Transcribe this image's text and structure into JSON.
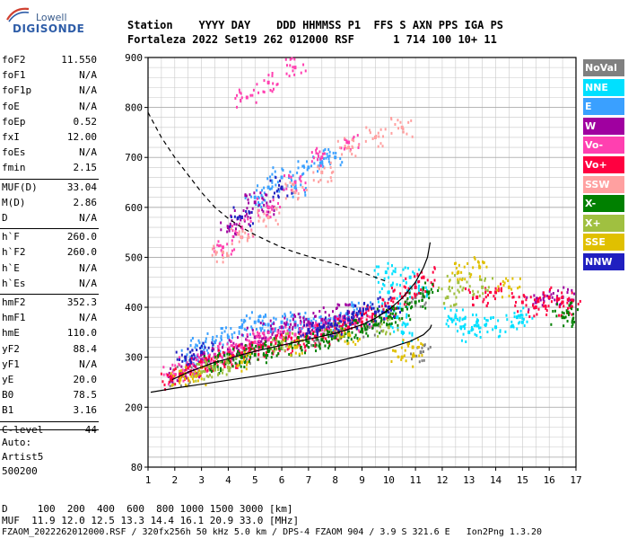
{
  "logo": {
    "top": "Lowell",
    "bottom": "DIGISONDE"
  },
  "header": {
    "row1": "Station    YYYY DAY    DDD HHMMSS P1  FFS S AXN PPS IGA PS",
    "row2": "Fortaleza 2022 Set19 262 012000 RSF      1 714 100 10+ 11"
  },
  "params_group1": [
    {
      "label": "foF2",
      "value": "11.550"
    },
    {
      "label": "foF1",
      "value": "N/A"
    },
    {
      "label": "foF1p",
      "value": "N/A"
    },
    {
      "label": "foE",
      "value": "N/A"
    },
    {
      "label": "foEp",
      "value": "0.52"
    },
    {
      "label": "fxI",
      "value": "12.00"
    },
    {
      "label": "foEs",
      "value": "N/A"
    },
    {
      "label": "fmin",
      "value": "2.15"
    }
  ],
  "params_group2": [
    {
      "label": "MUF(D)",
      "value": "33.04"
    },
    {
      "label": "M(D)",
      "value": "2.86"
    },
    {
      "label": "D",
      "value": "N/A"
    }
  ],
  "params_group3": [
    {
      "label": "h`F",
      "value": "260.0"
    },
    {
      "label": "h`F2",
      "value": "260.0"
    },
    {
      "label": "h`E",
      "value": "N/A"
    },
    {
      "label": "h`Es",
      "value": "N/A"
    }
  ],
  "params_group4": [
    {
      "label": "hmF2",
      "value": "352.3"
    },
    {
      "label": "hmF1",
      "value": "N/A"
    },
    {
      "label": "hmE",
      "value": "110.0"
    },
    {
      "label": "yF2",
      "value": "88.4"
    },
    {
      "label": "yF1",
      "value": "N/A"
    },
    {
      "label": "yE",
      "value": "20.0"
    },
    {
      "label": "B0",
      "value": "78.5"
    },
    {
      "label": "B1",
      "value": "3.16"
    }
  ],
  "params_group5": [
    {
      "label": "C-level",
      "value": "44"
    }
  ],
  "auto": {
    "line1": "Auto:",
    "line2": "Artist5",
    "line3": "500200"
  },
  "legend": [
    {
      "label": "NoVal",
      "color": "#808080"
    },
    {
      "label": "NNE",
      "color": "#00e0ff"
    },
    {
      "label": "E",
      "color": "#3aa0ff"
    },
    {
      "label": "W",
      "color": "#a000a0"
    },
    {
      "label": "Vo-",
      "color": "#ff40b0"
    },
    {
      "label": "Vo+",
      "color": "#ff0040"
    },
    {
      "label": "SSW",
      "color": "#ffa0a0"
    },
    {
      "label": "X-",
      "color": "#008000"
    },
    {
      "label": "X+",
      "color": "#a0c040"
    },
    {
      "label": "SSE",
      "color": "#e0c000"
    },
    {
      "label": "NNW",
      "color": "#2020c0"
    }
  ],
  "footer": {
    "row1": "D     100  200  400  600  800 1000 1500 3000 [km]",
    "row2": "MUF  11.9 12.0 12.5 13.3 14.4 16.1 20.9 33.0 [MHz]",
    "row3": "FZAOM_2022262012000.RSF / 320fx256h 50 kHz 5.0 km / DPS-4 FZAOM 904 / 3.9 S 321.6 E   Ion2Png 1.3.20"
  },
  "chart_data": {
    "type": "scatter",
    "xlabel": "",
    "ylabel": "",
    "xlim": [
      1,
      17
    ],
    "ylim": [
      80,
      900
    ],
    "x_ticks": [
      1,
      2,
      3,
      4,
      5,
      6,
      7,
      8,
      9,
      10,
      11,
      12,
      13,
      14,
      15,
      16,
      17
    ],
    "y_ticks": [
      80,
      200,
      300,
      400,
      500,
      600,
      700,
      800,
      900
    ],
    "grid": true,
    "series": [
      {
        "name": "NoVal",
        "color": "#808080",
        "points": [
          [
            2.2,
            262
          ],
          [
            4.5,
            300
          ],
          [
            7.3,
            335
          ],
          [
            9.4,
            360
          ],
          [
            11.0,
            420
          ],
          [
            11.2,
            310
          ]
        ]
      },
      {
        "name": "NNE",
        "color": "#00e0ff",
        "points": [
          [
            9.9,
            470
          ],
          [
            10.0,
            430
          ],
          [
            10.1,
            400
          ],
          [
            10.3,
            380
          ],
          [
            10.5,
            350
          ],
          [
            10.8,
            460
          ],
          [
            11.0,
            440
          ],
          [
            12.5,
            380
          ],
          [
            12.7,
            360
          ],
          [
            13.0,
            350
          ],
          [
            13.3,
            370
          ],
          [
            14.0,
            360
          ],
          [
            14.8,
            380
          ],
          [
            15.0,
            370
          ]
        ]
      },
      {
        "name": "E",
        "color": "#3aa0ff",
        "points": [
          [
            2.6,
            300
          ],
          [
            3.0,
            320
          ],
          [
            3.5,
            330
          ],
          [
            4.0,
            340
          ],
          [
            4.5,
            360
          ],
          [
            5.0,
            370
          ],
          [
            5.5,
            365
          ],
          [
            6.0,
            370
          ],
          [
            6.5,
            370
          ],
          [
            7.0,
            375
          ],
          [
            7.5,
            370
          ],
          [
            8.0,
            375
          ],
          [
            8.5,
            380
          ],
          [
            9.0,
            390
          ],
          [
            5.0,
            620
          ],
          [
            5.5,
            640
          ],
          [
            6.0,
            660
          ],
          [
            6.5,
            640
          ],
          [
            7.0,
            680
          ],
          [
            7.5,
            690
          ],
          [
            8.0,
            700
          ]
        ]
      },
      {
        "name": "W",
        "color": "#a000a0",
        "points": [
          [
            2.2,
            270
          ],
          [
            2.5,
            280
          ],
          [
            3.0,
            295
          ],
          [
            3.5,
            305
          ],
          [
            4.0,
            315
          ],
          [
            4.5,
            325
          ],
          [
            5.0,
            340
          ],
          [
            5.5,
            350
          ],
          [
            6.0,
            360
          ],
          [
            6.5,
            365
          ],
          [
            7.0,
            370
          ],
          [
            7.5,
            375
          ],
          [
            8.0,
            380
          ],
          [
            8.5,
            390
          ],
          [
            4.0,
            560
          ],
          [
            4.5,
            580
          ],
          [
            5.0,
            610
          ],
          [
            5.5,
            600
          ],
          [
            15.5,
            410
          ],
          [
            16.0,
            420
          ],
          [
            16.5,
            420
          ]
        ]
      },
      {
        "name": "Vo-",
        "color": "#ff40b0",
        "points": [
          [
            2.0,
            265
          ],
          [
            2.5,
            280
          ],
          [
            3.0,
            290
          ],
          [
            3.5,
            300
          ],
          [
            4.0,
            310
          ],
          [
            4.5,
            320
          ],
          [
            5.0,
            330
          ],
          [
            5.5,
            335
          ],
          [
            6.0,
            340
          ],
          [
            6.5,
            345
          ],
          [
            7.0,
            350
          ],
          [
            7.5,
            355
          ],
          [
            8.0,
            360
          ],
          [
            8.5,
            370
          ],
          [
            9.0,
            380
          ],
          [
            3.8,
            520
          ],
          [
            4.5,
            560
          ],
          [
            5.5,
            600
          ],
          [
            6.5,
            650
          ],
          [
            7.5,
            700
          ],
          [
            8.5,
            730
          ],
          [
            4.7,
            820
          ],
          [
            5.5,
            850
          ],
          [
            6.5,
            880
          ]
        ]
      },
      {
        "name": "Vo+",
        "color": "#ff0040",
        "points": [
          [
            1.9,
            255
          ],
          [
            2.2,
            265
          ],
          [
            2.6,
            272
          ],
          [
            3.0,
            280
          ],
          [
            3.5,
            290
          ],
          [
            4.0,
            298
          ],
          [
            4.5,
            306
          ],
          [
            5.0,
            313
          ],
          [
            5.5,
            320
          ],
          [
            6.0,
            326
          ],
          [
            6.5,
            332
          ],
          [
            7.0,
            338
          ],
          [
            7.5,
            344
          ],
          [
            8.0,
            351
          ],
          [
            8.5,
            360
          ],
          [
            9.0,
            370
          ],
          [
            9.5,
            385
          ],
          [
            10.0,
            400
          ],
          [
            10.5,
            420
          ],
          [
            11.0,
            440
          ],
          [
            11.3,
            460
          ],
          [
            13.3,
            420
          ],
          [
            14.0,
            430
          ],
          [
            15.0,
            410
          ],
          [
            15.5,
            400
          ],
          [
            16.0,
            420
          ],
          [
            16.5,
            410
          ],
          [
            16.8,
            400
          ]
        ]
      },
      {
        "name": "SSW",
        "color": "#ffa0a0",
        "points": [
          [
            3.8,
            510
          ],
          [
            4.5,
            540
          ],
          [
            5.5,
            580
          ],
          [
            6.5,
            630
          ],
          [
            7.5,
            670
          ],
          [
            8.5,
            720
          ],
          [
            9.5,
            740
          ],
          [
            10.5,
            760
          ]
        ]
      },
      {
        "name": "X-",
        "color": "#008000",
        "points": [
          [
            3.5,
            285
          ],
          [
            4.0,
            292
          ],
          [
            4.5,
            300
          ],
          [
            5.0,
            305
          ],
          [
            5.5,
            312
          ],
          [
            6.0,
            318
          ],
          [
            6.5,
            322
          ],
          [
            7.0,
            330
          ],
          [
            7.5,
            335
          ],
          [
            8.0,
            340
          ],
          [
            8.5,
            350
          ],
          [
            9.0,
            356
          ],
          [
            9.5,
            365
          ],
          [
            10.0,
            380
          ],
          [
            10.5,
            395
          ],
          [
            11.0,
            410
          ],
          [
            11.5,
            430
          ],
          [
            16.5,
            380
          ],
          [
            16.7,
            390
          ]
        ]
      },
      {
        "name": "X+",
        "color": "#a0c040",
        "points": [
          [
            3.0,
            270
          ],
          [
            3.5,
            275
          ],
          [
            4.0,
            280
          ],
          [
            6.0,
            330
          ],
          [
            8.0,
            350
          ],
          [
            10.0,
            360
          ],
          [
            12.2,
            420
          ],
          [
            12.6,
            450
          ],
          [
            13.5,
            440
          ]
        ]
      },
      {
        "name": "SSE",
        "color": "#e0c000",
        "points": [
          [
            2.2,
            255
          ],
          [
            2.8,
            262
          ],
          [
            4.5,
            290
          ],
          [
            6.5,
            320
          ],
          [
            8.5,
            345
          ],
          [
            10.5,
            300
          ],
          [
            10.9,
            320
          ],
          [
            12.6,
            470
          ],
          [
            13.4,
            480
          ],
          [
            14.5,
            440
          ]
        ]
      },
      {
        "name": "NNW",
        "color": "#2020c0",
        "points": [
          [
            2.4,
            300
          ],
          [
            3.0,
            310
          ],
          [
            7.0,
            355
          ],
          [
            7.5,
            360
          ],
          [
            8.0,
            365
          ],
          [
            8.5,
            375
          ],
          [
            9.0,
            385
          ],
          [
            9.5,
            390
          ],
          [
            10.0,
            400
          ],
          [
            4.5,
            580
          ],
          [
            6.0,
            640
          ]
        ]
      }
    ],
    "curves": [
      {
        "name": "",
        "style": "solid",
        "points": [
          [
            1.9,
            255
          ],
          [
            2.5,
            270
          ],
          [
            3.0,
            280
          ],
          [
            3.5,
            290
          ],
          [
            4.0,
            297
          ],
          [
            4.5,
            305
          ],
          [
            5.0,
            312
          ],
          [
            5.5,
            318
          ],
          [
            6.0,
            324
          ],
          [
            6.5,
            330
          ],
          [
            7.0,
            336
          ],
          [
            7.5,
            342
          ],
          [
            8.0,
            348
          ],
          [
            8.5,
            356
          ],
          [
            9.0,
            365
          ],
          [
            9.5,
            378
          ],
          [
            10.0,
            395
          ],
          [
            10.5,
            418
          ],
          [
            11.0,
            450
          ],
          [
            11.3,
            480
          ],
          [
            11.45,
            500
          ],
          [
            11.55,
            530
          ]
        ]
      },
      {
        "name": "",
        "style": "solid",
        "points": [
          [
            1.1,
            230
          ],
          [
            2.0,
            238
          ],
          [
            3.0,
            246
          ],
          [
            4.0,
            254
          ],
          [
            5.0,
            262
          ],
          [
            6.0,
            271
          ],
          [
            7.0,
            280
          ],
          [
            8.0,
            291
          ],
          [
            9.0,
            304
          ],
          [
            10.0,
            318
          ],
          [
            10.8,
            332
          ],
          [
            11.3,
            345
          ],
          [
            11.55,
            358
          ],
          [
            11.6,
            365
          ]
        ]
      },
      {
        "name": "",
        "style": "dashed",
        "points": [
          [
            1.0,
            790
          ],
          [
            1.5,
            740
          ],
          [
            2.0,
            700
          ],
          [
            2.5,
            665
          ],
          [
            3.0,
            630
          ],
          [
            3.5,
            600
          ],
          [
            4.0,
            578
          ],
          [
            4.5,
            560
          ],
          [
            5.0,
            545
          ],
          [
            5.5,
            532
          ],
          [
            6.0,
            520
          ],
          [
            6.5,
            510
          ],
          [
            7.0,
            502
          ],
          [
            7.5,
            494
          ],
          [
            8.0,
            487
          ],
          [
            8.5,
            479
          ],
          [
            9.0,
            470
          ],
          [
            9.5,
            460
          ],
          [
            10.0,
            450
          ]
        ]
      }
    ]
  }
}
